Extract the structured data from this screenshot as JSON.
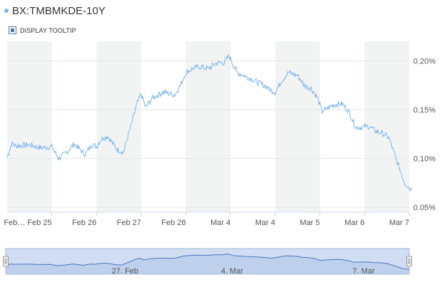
{
  "header": {
    "title": "BX:TMBMKDE-10Y",
    "tooltip_toggle_label": "DISPLAY TOOLTIP"
  },
  "colors": {
    "line": "#7cb5ec",
    "band": "#f2f4f4",
    "grid": "#e6e6e6",
    "navigator_fill": "#d0ddf2",
    "navigator_border": "#a3b8d6"
  },
  "chart_data": {
    "type": "line",
    "title": "BX:TMBMKDE-10Y",
    "ylabel": "",
    "xlabel": "",
    "y_unit": "%",
    "ylim": [
      0.045,
      0.22
    ],
    "y_ticks": [
      "0.05%",
      "0.10%",
      "0.15%",
      "0.20%"
    ],
    "x_ticks": [
      "Feb… Feb 25",
      "Feb 26",
      "Feb 27",
      "Feb 28",
      "Mar 4",
      "Mar 4",
      "Mar 5",
      "Mar 6",
      "Mar 7"
    ],
    "grid": true,
    "legend": "none",
    "series": [
      {
        "x": [
          0,
          0.1,
          0.2,
          0.5,
          0.75,
          1.0,
          1.15,
          1.3,
          1.5,
          1.75,
          1.9,
          2.0,
          2.1,
          2.25,
          2.45,
          2.6,
          2.75,
          2.9,
          3.0,
          3.1,
          3.25,
          3.5,
          3.75,
          3.9,
          4.0,
          4.15,
          4.3,
          4.5,
          4.7,
          4.85,
          4.97,
          5.05,
          5.15,
          5.3,
          5.45,
          5.6,
          5.75,
          5.9,
          6.0,
          6.15,
          6.3,
          6.5,
          6.65,
          6.8,
          6.95,
          7.05,
          7.3,
          7.5,
          7.65,
          7.8,
          7.95,
          8.1,
          8.25,
          8.4,
          8.55,
          8.7,
          8.8,
          8.9,
          9.0,
          9.05
        ],
        "values": [
          0.101,
          0.115,
          0.113,
          0.114,
          0.111,
          0.112,
          0.1,
          0.105,
          0.115,
          0.104,
          0.115,
          0.112,
          0.12,
          0.123,
          0.11,
          0.106,
          0.13,
          0.155,
          0.166,
          0.152,
          0.162,
          0.168,
          0.165,
          0.177,
          0.188,
          0.192,
          0.194,
          0.192,
          0.198,
          0.198,
          0.205,
          0.197,
          0.188,
          0.185,
          0.182,
          0.178,
          0.175,
          0.17,
          0.168,
          0.18,
          0.188,
          0.185,
          0.175,
          0.172,
          0.162,
          0.148,
          0.155,
          0.156,
          0.148,
          0.132,
          0.132,
          0.133,
          0.128,
          0.126,
          0.121,
          0.1,
          0.088,
          0.075,
          0.07,
          0.068
        ]
      }
    ],
    "navigator": {
      "labels": [
        "27. Feb",
        "4. Mar",
        "7. Mar"
      ]
    }
  }
}
